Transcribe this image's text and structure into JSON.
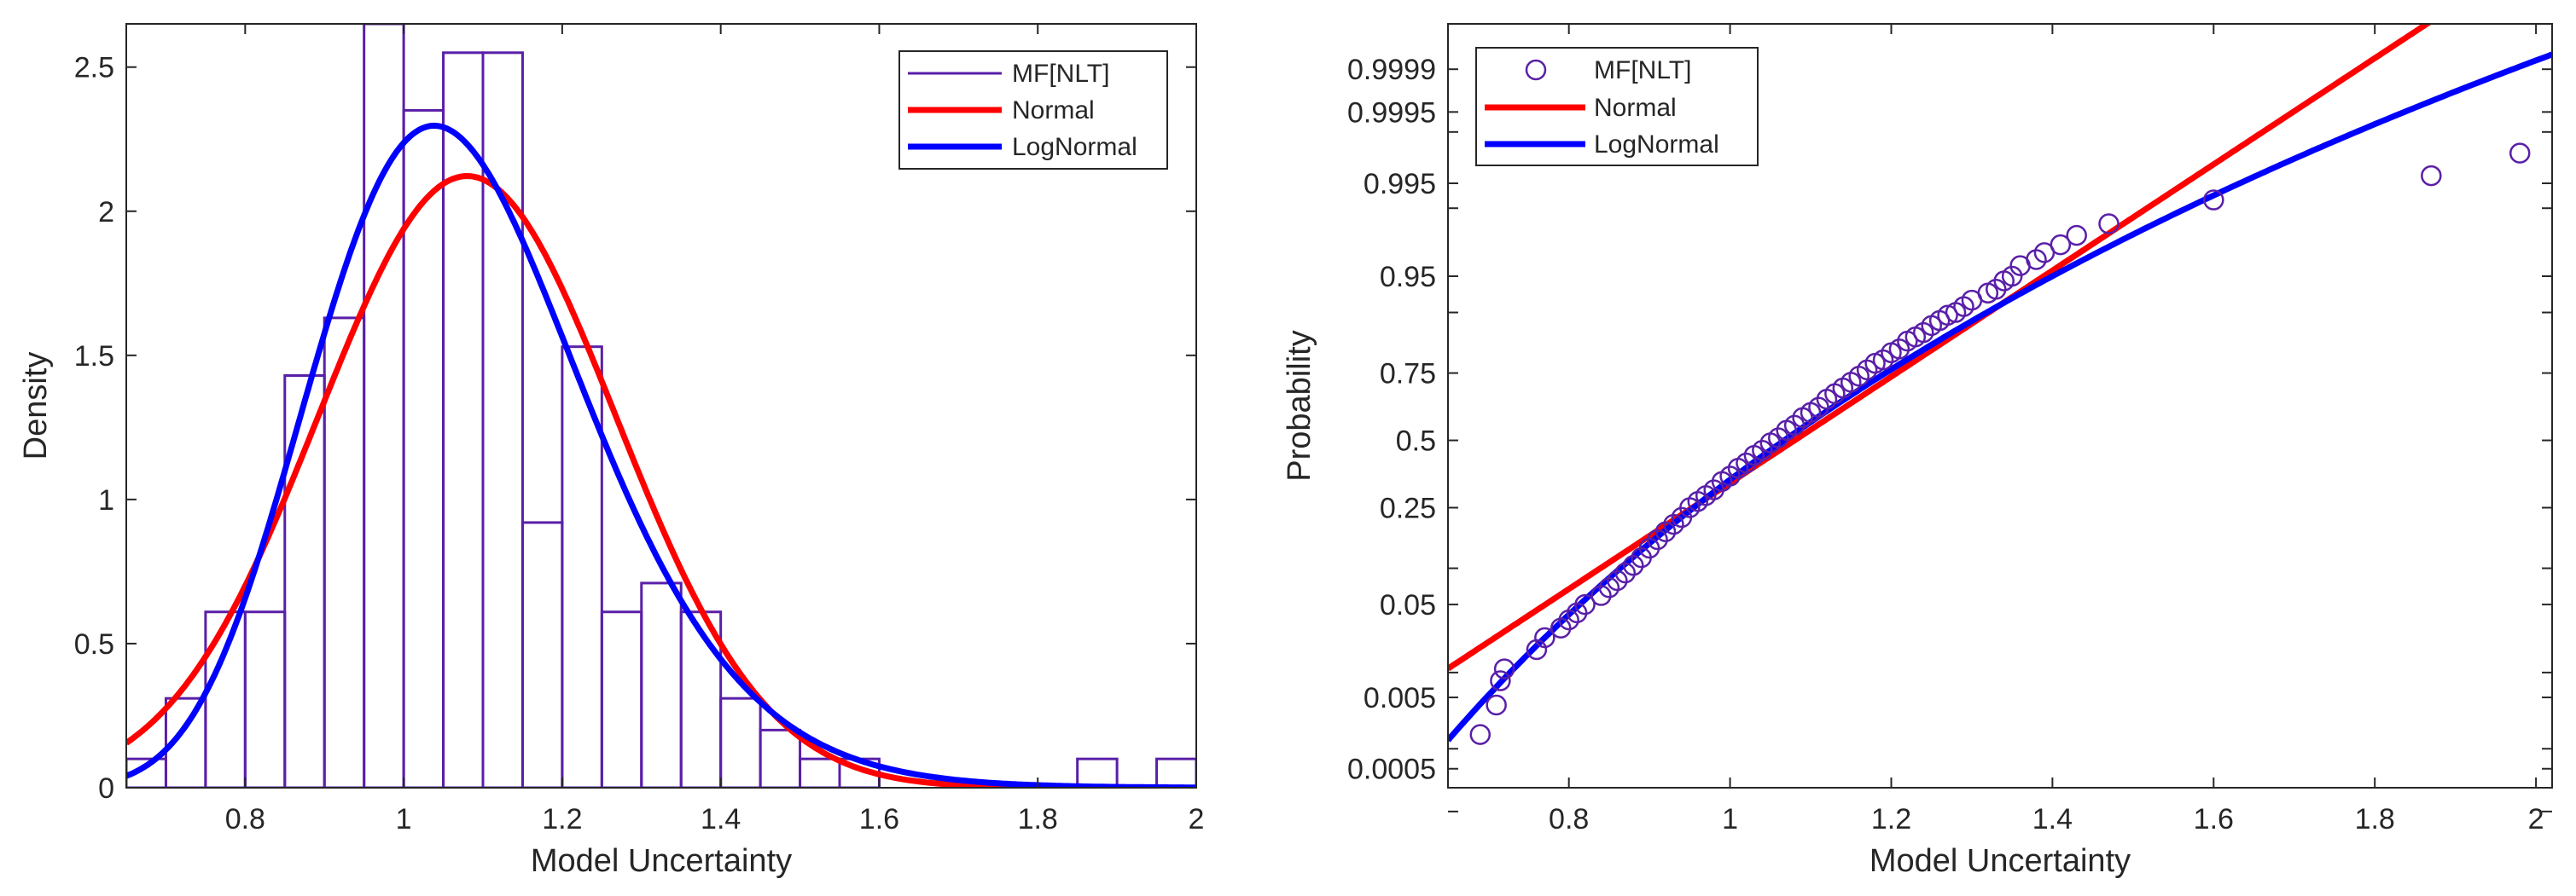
{
  "chart_data": [
    {
      "type": "bar",
      "subtype": "histogram-with-fitted-densities",
      "title": "",
      "xlabel": "Model Uncertainty",
      "ylabel": "Density",
      "xlim": [
        0.65,
        2.0
      ],
      "ylim": [
        0,
        2.65
      ],
      "xticks": [
        0.8,
        1,
        1.2,
        1.4,
        1.6,
        1.8,
        2
      ],
      "xtick_labels": [
        "0.8",
        "1",
        "1.2",
        "1.4",
        "1.6",
        "1.8",
        "2"
      ],
      "yticks": [
        0,
        0.5,
        1,
        1.5,
        2,
        2.5
      ],
      "ytick_labels": [
        "0",
        "0.5",
        "1",
        "1.5",
        "2",
        "2.5"
      ],
      "legend_position": "top-right",
      "histogram": {
        "name": "MF[NLT]",
        "color": "#5a1fa8",
        "bin_edges": [
          0.65,
          0.7,
          0.75,
          0.8,
          0.85,
          0.9,
          0.95,
          1.0,
          1.05,
          1.1,
          1.15,
          1.2,
          1.25,
          1.3,
          1.35,
          1.4,
          1.45,
          1.5,
          1.55,
          1.6,
          1.65,
          1.7,
          1.75,
          1.8,
          1.85,
          1.9,
          1.95,
          2.0
        ],
        "counts": [
          0.1,
          0.31,
          0.61,
          0.61,
          1.43,
          1.63,
          2.65,
          2.35,
          2.55,
          2.55,
          0.92,
          1.53,
          0.61,
          0.71,
          0.61,
          0.31,
          0.2,
          0.1,
          0.1,
          0.0,
          0.0,
          0.0,
          0.0,
          0.0,
          0.1,
          0.0,
          0.1
        ]
      },
      "series": [
        {
          "name": "Normal",
          "color": "#ff0000",
          "distribution": "normal",
          "mean": 1.08,
          "sd": 0.188
        },
        {
          "name": "LogNormal",
          "color": "#0000ff",
          "distribution": "lognormal",
          "mu": 0.065,
          "sigma": 0.165
        }
      ]
    },
    {
      "type": "scatter",
      "subtype": "probability-plot",
      "title": "",
      "xlabel": "Model Uncertainty",
      "ylabel": "Probability",
      "xlim": [
        0.65,
        2.02
      ],
      "xticks": [
        0.8,
        1,
        1.2,
        1.4,
        1.6,
        1.8,
        2
      ],
      "xtick_labels": [
        "0.8",
        "1",
        "1.2",
        "1.4",
        "1.6",
        "1.8",
        "2"
      ],
      "yticks": [
        0.0005,
        0.005,
        0.05,
        0.25,
        0.5,
        0.75,
        0.95,
        0.995,
        0.9995,
        0.9999
      ],
      "ytick_labels": [
        "0.0005",
        "0.005",
        "0.05",
        "0.25",
        "0.5",
        "0.75",
        "0.95",
        "0.995",
        "0.9995",
        "0.9999"
      ],
      "legend_position": "top-left",
      "points": {
        "name": "MF[NLT]",
        "color": "#5a1fa8",
        "x": [
          0.69,
          0.71,
          0.715,
          0.72,
          0.76,
          0.77,
          0.79,
          0.8,
          0.81,
          0.82,
          0.84,
          0.85,
          0.86,
          0.87,
          0.88,
          0.89,
          0.9,
          0.91,
          0.92,
          0.93,
          0.94,
          0.95,
          0.96,
          0.97,
          0.98,
          0.99,
          1.0,
          1.01,
          1.02,
          1.03,
          1.04,
          1.05,
          1.06,
          1.07,
          1.08,
          1.09,
          1.1,
          1.11,
          1.12,
          1.13,
          1.14,
          1.15,
          1.16,
          1.17,
          1.18,
          1.19,
          1.2,
          1.21,
          1.22,
          1.23,
          1.24,
          1.25,
          1.26,
          1.27,
          1.28,
          1.29,
          1.3,
          1.32,
          1.33,
          1.34,
          1.35,
          1.36,
          1.38,
          1.39,
          1.41,
          1.43,
          1.47,
          1.6,
          1.87,
          1.98
        ],
        "y": [
          0.0016,
          0.004,
          0.008,
          0.011,
          0.018,
          0.024,
          0.03,
          0.036,
          0.042,
          0.05,
          0.06,
          0.07,
          0.08,
          0.092,
          0.105,
          0.12,
          0.14,
          0.16,
          0.18,
          0.2,
          0.22,
          0.25,
          0.27,
          0.29,
          0.31,
          0.34,
          0.36,
          0.39,
          0.41,
          0.44,
          0.46,
          0.49,
          0.51,
          0.54,
          0.56,
          0.59,
          0.61,
          0.63,
          0.66,
          0.68,
          0.7,
          0.72,
          0.74,
          0.76,
          0.78,
          0.79,
          0.81,
          0.82,
          0.84,
          0.85,
          0.86,
          0.875,
          0.885,
          0.895,
          0.9,
          0.91,
          0.92,
          0.93,
          0.935,
          0.945,
          0.95,
          0.96,
          0.965,
          0.97,
          0.975,
          0.98,
          0.985,
          0.992,
          0.996,
          0.998
        ]
      },
      "series": [
        {
          "name": "Normal",
          "color": "#ff0000",
          "distribution": "normal",
          "mean": 1.08,
          "sd": 0.188
        },
        {
          "name": "LogNormal",
          "color": "#0000ff",
          "distribution": "lognormal",
          "mu": 0.065,
          "sigma": 0.165
        }
      ]
    }
  ]
}
